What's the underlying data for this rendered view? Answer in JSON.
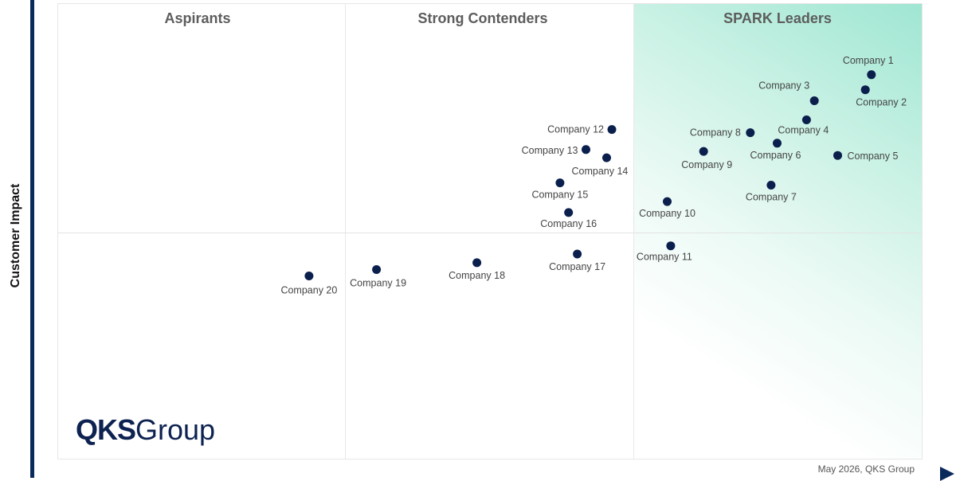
{
  "y_axis_label": "Customer Impact",
  "quadrants": [
    "Aspirants",
    "Strong Contenders",
    "SPARK Leaders"
  ],
  "logo": {
    "bold": "QKS",
    "light": "Group"
  },
  "footer": "May 2026, QKS Group",
  "colors": {
    "point": "#0b1f4d",
    "leader_gradient": "#9fe6d2",
    "axis": "#0b2a5c"
  },
  "chart_data": {
    "type": "scatter",
    "title": "",
    "xlabel": "",
    "ylabel": "Customer Impact",
    "xlim": [
      0,
      100
    ],
    "ylim": [
      0,
      100
    ],
    "grid": false,
    "points": [
      {
        "name": "Company 1",
        "x": 94.0,
        "y": 84.5
      },
      {
        "name": "Company 2",
        "x": 93.3,
        "y": 81.2
      },
      {
        "name": "Company 3",
        "x": 87.4,
        "y": 78.8
      },
      {
        "name": "Company 4",
        "x": 86.5,
        "y": 74.6
      },
      {
        "name": "Company 5",
        "x": 90.1,
        "y": 66.8
      },
      {
        "name": "Company 6",
        "x": 83.1,
        "y": 69.5
      },
      {
        "name": "Company 7",
        "x": 82.4,
        "y": 60.3
      },
      {
        "name": "Company 8",
        "x": 80.0,
        "y": 71.8
      },
      {
        "name": "Company 9",
        "x": 74.6,
        "y": 67.7
      },
      {
        "name": "Company 10",
        "x": 70.4,
        "y": 56.7
      },
      {
        "name": "Company 11",
        "x": 70.8,
        "y": 47.0
      },
      {
        "name": "Company 12",
        "x": 64.0,
        "y": 72.5
      },
      {
        "name": "Company 13",
        "x": 61.0,
        "y": 68.1
      },
      {
        "name": "Company 14",
        "x": 63.4,
        "y": 66.3
      },
      {
        "name": "Company 15",
        "x": 58.0,
        "y": 60.8
      },
      {
        "name": "Company 16",
        "x": 59.0,
        "y": 54.3
      },
      {
        "name": "Company 17",
        "x": 60.0,
        "y": 45.2
      },
      {
        "name": "Company 18",
        "x": 48.4,
        "y": 43.3
      },
      {
        "name": "Company 19",
        "x": 36.8,
        "y": 41.8
      },
      {
        "name": "Company 20",
        "x": 29.0,
        "y": 40.4
      }
    ]
  }
}
